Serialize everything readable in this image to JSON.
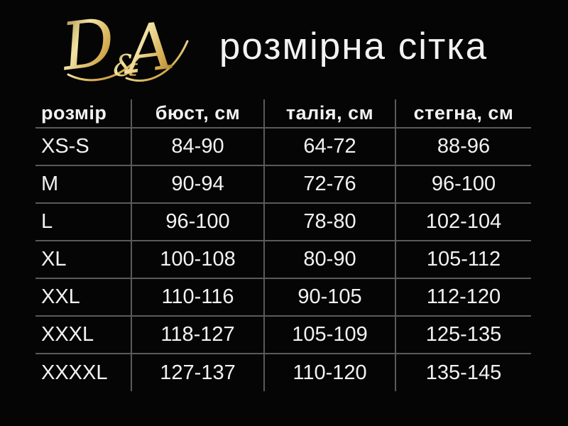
{
  "brand": {
    "logo_d": "D",
    "logo_amp": "&",
    "logo_a": "A"
  },
  "header": {
    "title": "розмірна сітка"
  },
  "chart_data": {
    "type": "table",
    "title": "розмірна сітка",
    "columns": [
      "розмір",
      "бюст, см",
      "талія, см",
      "стегна, см"
    ],
    "rows": [
      [
        "XS-S",
        "84-90",
        "64-72",
        "88-96"
      ],
      [
        "M",
        "90-94",
        "72-76",
        "96-100"
      ],
      [
        "L",
        "96-100",
        "78-80",
        "102-104"
      ],
      [
        "XL",
        "100-108",
        "80-90",
        "105-112"
      ],
      [
        "XXL",
        "110-116",
        "90-105",
        "112-120"
      ],
      [
        "XXXL",
        "118-127",
        "105-109",
        "125-135"
      ],
      [
        "XXXXL",
        "127-137",
        "110-120",
        "135-145"
      ]
    ]
  },
  "colors": {
    "background": "#050505",
    "text": "#f2f2f2",
    "grid_line": "#5a5a5a",
    "gold_dark": "#8f6b1f",
    "gold_mid": "#d4ab4f",
    "gold_light": "#f2e3a4"
  }
}
